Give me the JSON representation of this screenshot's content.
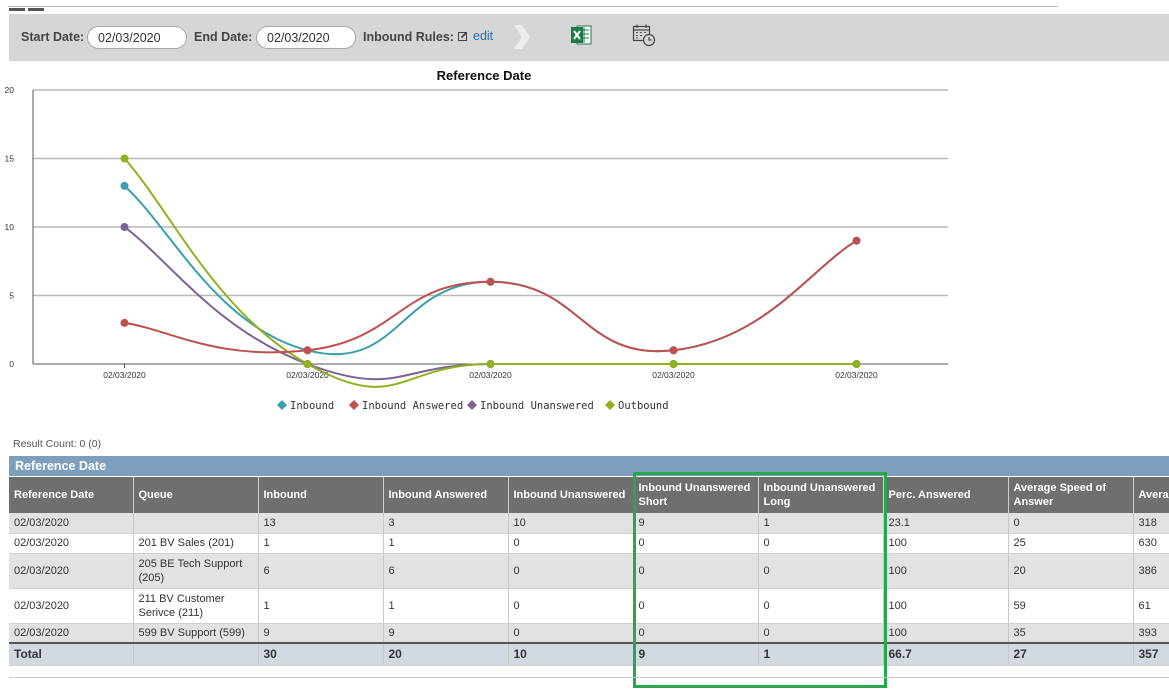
{
  "toolbar": {
    "start_label": "Start Date:",
    "start_value": "02/03/2020",
    "end_label": "End Date:",
    "end_value": "02/03/2020",
    "rules_label": "Inbound Rules:",
    "edit_label": "edit",
    "icons": [
      "edit-icon",
      "chevron-right-icon",
      "excel-icon",
      "calendar-clock-icon"
    ]
  },
  "chart_data": {
    "type": "line",
    "title": "Reference Date",
    "categories": [
      "02/03/2020",
      "02/03/2020",
      "02/03/2020",
      "02/03/2020",
      "02/03/2020"
    ],
    "ylim": [
      0,
      20
    ],
    "yticks": [
      "0",
      "5",
      "10",
      "15",
      "20"
    ],
    "grid": true,
    "legend_position": "bottom",
    "series": [
      {
        "name": "Inbound",
        "color": "#3a9fad",
        "values": [
          13,
          1,
          6,
          1,
          9
        ]
      },
      {
        "name": "Inbound Answered",
        "color": "#c0504d",
        "values": [
          3,
          1,
          6,
          1,
          9
        ]
      },
      {
        "name": "Inbound Unanswered",
        "color": "#7e6396",
        "values": [
          10,
          0,
          0,
          0,
          0
        ]
      },
      {
        "name": "Outbound",
        "color": "#8fb21d",
        "values": [
          15,
          0,
          0,
          0,
          0
        ]
      }
    ]
  },
  "result_count": "Result Count: 0 (0)",
  "table": {
    "caption": "Reference Date",
    "headers": [
      "Reference Date",
      "Queue",
      "Inbound",
      "Inbound Answered",
      "Inbound Unanswered",
      "Inbound Unanswered Short",
      "Inbound Unanswered Long",
      "Perc. Answered",
      "Average Speed of Answer",
      "Avera"
    ],
    "rows": [
      [
        "02/03/2020",
        "",
        "13",
        "3",
        "10",
        "9",
        "1",
        "23.1",
        "0",
        "318"
      ],
      [
        "02/03/2020",
        "201 BV Sales (201)",
        "1",
        "1",
        "0",
        "0",
        "0",
        "100",
        "25",
        "630"
      ],
      [
        "02/03/2020",
        "205 BE Tech Support (205)",
        "6",
        "6",
        "0",
        "0",
        "0",
        "100",
        "20",
        "386"
      ],
      [
        "02/03/2020",
        "211 BV Customer Serivce (211)",
        "1",
        "1",
        "0",
        "0",
        "0",
        "100",
        "59",
        "61"
      ],
      [
        "02/03/2020",
        "599 BV Support (599)",
        "9",
        "9",
        "0",
        "0",
        "0",
        "100",
        "35",
        "393"
      ]
    ],
    "total": [
      "Total",
      "",
      "30",
      "20",
      "10",
      "9",
      "1",
      "66.7",
      "27",
      "357"
    ]
  },
  "colors": {
    "toolbar_bg": "#d6d6d6",
    "table_caption_bg": "#7d9fbd",
    "header_bg": "#6f6f6f",
    "highlight": "#27a84a",
    "link": "#2d6fb5"
  }
}
